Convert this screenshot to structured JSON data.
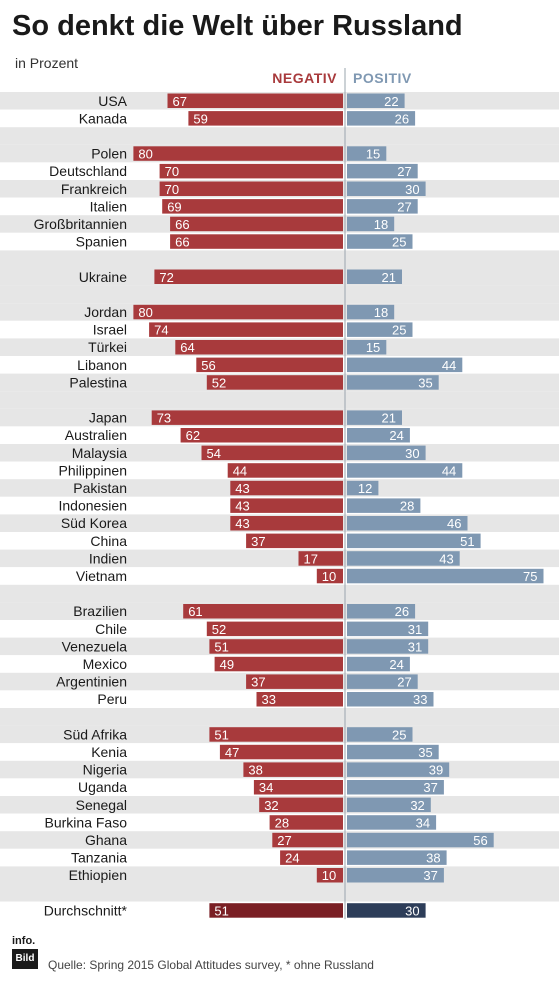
{
  "header": {
    "title": "So denkt die Welt über Russland",
    "subtitle": "in Prozent"
  },
  "legend": {
    "negative_label": "NEGATIV",
    "positive_label": "POSITIV"
  },
  "footer": {
    "source": "Quelle: Spring 2015 Global Attitudes survey, * ohne Russland",
    "logo_text": "info. Bild"
  },
  "colors": {
    "negative": "#a83a3c",
    "positive": "#7f98b2",
    "average_negative": "#7a1f24",
    "average_positive": "#2d3d59",
    "stripe": "#e6e6e6"
  },
  "chart_data": {
    "type": "bar",
    "title": "So denkt die Welt über Russland",
    "subtitle": "in Prozent",
    "orientation": "horizontal-diverging",
    "legend": [
      "NEGATIV",
      "POSITIV"
    ],
    "groups": [
      {
        "rows": [
          {
            "country": "USA",
            "negative": 67,
            "positive": 22
          },
          {
            "country": "Kanada",
            "negative": 59,
            "positive": 26
          }
        ]
      },
      {
        "rows": [
          {
            "country": "Polen",
            "negative": 80,
            "positive": 15
          },
          {
            "country": "Deutschland",
            "negative": 70,
            "positive": 27
          },
          {
            "country": "Frankreich",
            "negative": 70,
            "positive": 30
          },
          {
            "country": "Italien",
            "negative": 69,
            "positive": 27
          },
          {
            "country": "Großbritannien",
            "negative": 66,
            "positive": 18
          },
          {
            "country": "Spanien",
            "negative": 66,
            "positive": 25
          }
        ]
      },
      {
        "rows": [
          {
            "country": "Ukraine",
            "negative": 72,
            "positive": 21
          }
        ]
      },
      {
        "rows": [
          {
            "country": "Jordan",
            "negative": 80,
            "positive": 18
          },
          {
            "country": "Israel",
            "negative": 74,
            "positive": 25
          },
          {
            "country": "Türkei",
            "negative": 64,
            "positive": 15
          },
          {
            "country": "Libanon",
            "negative": 56,
            "positive": 44
          },
          {
            "country": "Palestina",
            "negative": 52,
            "positive": 35
          }
        ]
      },
      {
        "rows": [
          {
            "country": "Japan",
            "negative": 73,
            "positive": 21
          },
          {
            "country": "Australien",
            "negative": 62,
            "positive": 24
          },
          {
            "country": "Malaysia",
            "negative": 54,
            "positive": 30
          },
          {
            "country": "Philippinen",
            "negative": 44,
            "positive": 44
          },
          {
            "country": "Pakistan",
            "negative": 43,
            "positive": 12
          },
          {
            "country": "Indonesien",
            "negative": 43,
            "positive": 28
          },
          {
            "country": "Süd Korea",
            "negative": 43,
            "positive": 46
          },
          {
            "country": "China",
            "negative": 37,
            "positive": 51
          },
          {
            "country": "Indien",
            "negative": 17,
            "positive": 43
          },
          {
            "country": "Vietnam",
            "negative": 10,
            "positive": 75
          }
        ]
      },
      {
        "rows": [
          {
            "country": "Brazilien",
            "negative": 61,
            "positive": 26
          },
          {
            "country": "Chile",
            "negative": 52,
            "positive": 31
          },
          {
            "country": "Venezuela",
            "negative": 51,
            "positive": 31
          },
          {
            "country": "Mexico",
            "negative": 49,
            "positive": 24
          },
          {
            "country": "Argentinien",
            "negative": 37,
            "positive": 27
          },
          {
            "country": "Peru",
            "negative": 33,
            "positive": 33
          }
        ]
      },
      {
        "rows": [
          {
            "country": "Süd Afrika",
            "negative": 51,
            "positive": 25
          },
          {
            "country": "Kenia",
            "negative": 47,
            "positive": 35
          },
          {
            "country": "Nigeria",
            "negative": 38,
            "positive": 39
          },
          {
            "country": "Uganda",
            "negative": 34,
            "positive": 37
          },
          {
            "country": "Senegal",
            "negative": 32,
            "positive": 32
          },
          {
            "country": "Burkina Faso",
            "negative": 28,
            "positive": 34
          },
          {
            "country": "Ghana",
            "negative": 27,
            "positive": 56
          },
          {
            "country": "Tanzania",
            "negative": 24,
            "positive": 38
          },
          {
            "country": "Ethiopien",
            "negative": 10,
            "positive": 37
          }
        ]
      },
      {
        "average": true,
        "rows": [
          {
            "country": "Durchschnitt*",
            "negative": 51,
            "positive": 30
          }
        ]
      }
    ]
  }
}
